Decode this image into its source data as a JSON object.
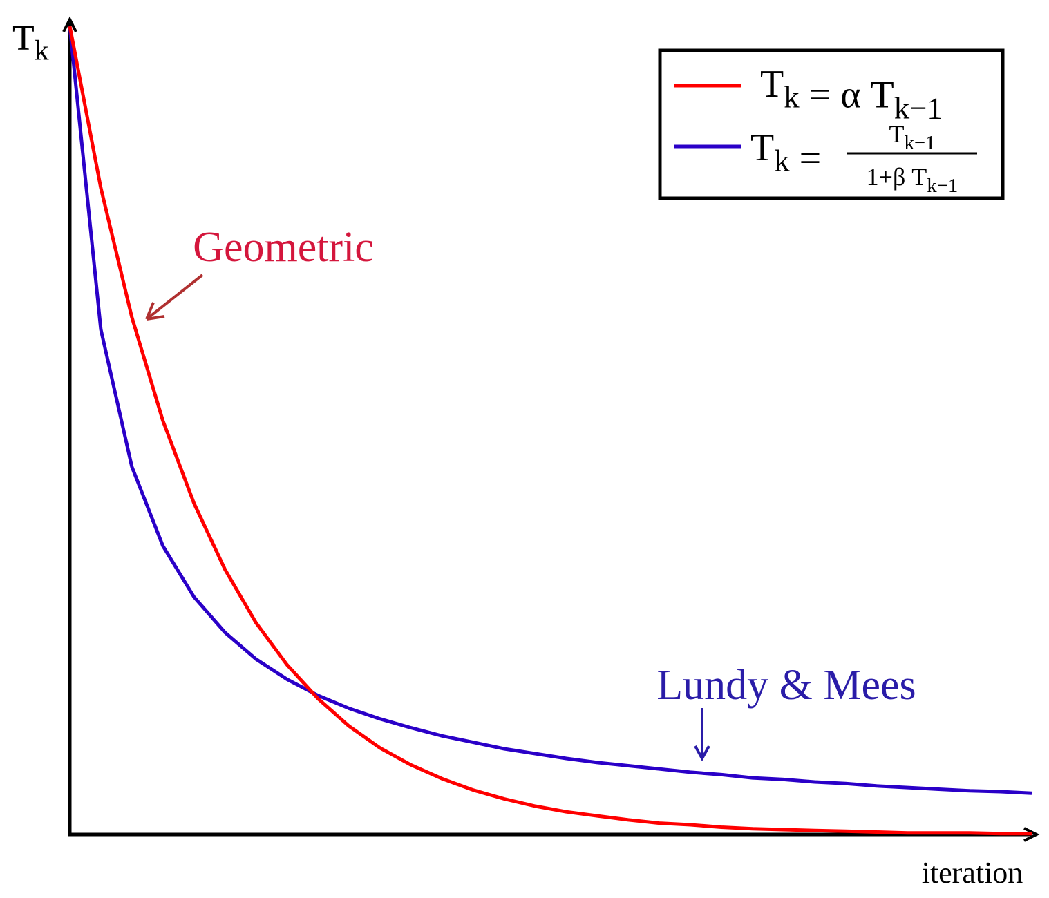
{
  "chart_data": {
    "type": "line",
    "y_label": "Tk",
    "x_label": "iteration",
    "annotations": [
      {
        "text": "Geometric",
        "color": "#d4163c"
      },
      {
        "text": "Lundy & Mees",
        "color": "#2a1ca8"
      }
    ],
    "x": [
      0,
      1,
      2,
      3,
      4,
      5,
      6,
      7,
      8,
      9,
      10,
      11,
      12,
      13,
      14,
      15,
      16,
      17,
      18,
      19,
      20,
      21,
      22,
      23,
      24,
      25,
      26,
      27,
      28,
      29,
      30,
      31
    ],
    "xlim": [
      0,
      31
    ],
    "ylim": [
      0,
      100
    ],
    "grid": false,
    "legend": "top-right",
    "series": [
      {
        "name": "Tk = α Tk−1",
        "color": "#ff0000",
        "values": [
          100,
          80,
          64,
          51.2,
          41,
          32.8,
          26.2,
          21,
          16.8,
          13.4,
          10.7,
          8.6,
          6.9,
          5.5,
          4.4,
          3.5,
          2.8,
          2.3,
          1.8,
          1.4,
          1.2,
          0.9,
          0.7,
          0.6,
          0.5,
          0.4,
          0.3,
          0.2,
          0.2,
          0.2,
          0.1,
          0.1
        ]
      },
      {
        "name": {
          "lhs": "Tk =",
          "numerator": "Tk−1",
          "denominator": "1+β Tk−1"
        },
        "color": "#2a00c8",
        "values": [
          100,
          62.5,
          45.5,
          35.7,
          29.4,
          25,
          21.7,
          19.2,
          17.2,
          15.6,
          14.3,
          13.2,
          12.2,
          11.4,
          10.6,
          10,
          9.4,
          8.9,
          8.5,
          8.1,
          7.7,
          7.4,
          7,
          6.8,
          6.5,
          6.3,
          6,
          5.8,
          5.6,
          5.4,
          5.3,
          5.1
        ]
      }
    ]
  }
}
